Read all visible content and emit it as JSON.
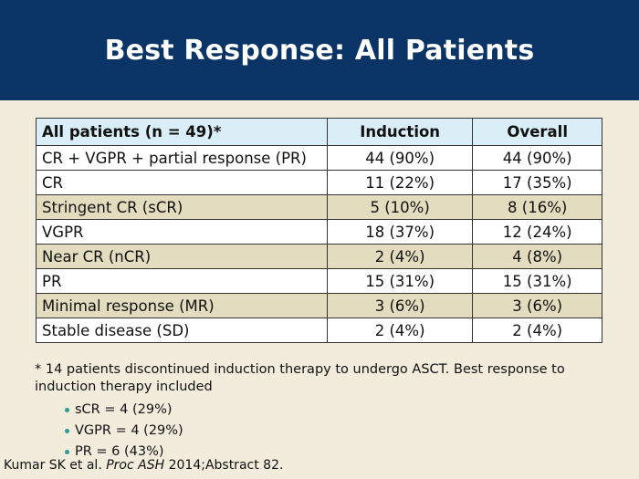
{
  "slide": {
    "title": "Best Response: All Patients"
  },
  "table": {
    "headers": [
      "All patients (n = 49)*",
      "Induction",
      "Overall"
    ],
    "rows": [
      {
        "label": "CR + VGPR + partial response (PR)",
        "induction": "44 (90%)",
        "overall": "44 (90%)"
      },
      {
        "label": "CR",
        "induction": "11 (22%)",
        "overall": "17 (35%)"
      },
      {
        "label": "Stringent CR (sCR)",
        "induction": "5 (10%)",
        "overall": "8 (16%)"
      },
      {
        "label": "VGPR",
        "induction": "18 (37%)",
        "overall": "12 (24%)"
      },
      {
        "label": "Near CR (nCR)",
        "induction": "2 (4%)",
        "overall": "4 (8%)"
      },
      {
        "label": "PR",
        "induction": "15 (31%)",
        "overall": "15 (31%)"
      },
      {
        "label": "Minimal response (MR)",
        "induction": "3 (6%)",
        "overall": "3 (6%)"
      },
      {
        "label": "Stable disease (SD)",
        "induction": "2 (4%)",
        "overall": "2 (4%)"
      }
    ]
  },
  "footnote": {
    "text": "* 14 patients discontinued induction therapy to undergo ASCT. Best response to induction therapy included",
    "bullets": [
      "sCR = 4 (29%)",
      "VGPR = 4 (29%)",
      "PR = 6 (43%)"
    ]
  },
  "citation": {
    "authors": "Kumar SK et al.",
    "journal": "Proc ASH",
    "rest": "2014;Abstract 82."
  },
  "colors": {
    "title_bar": "#0b3466",
    "background": "#f1ecdc",
    "header_row": "#daeef7",
    "shaded_row": "#e4dcbf",
    "bullet": "#2f9a8f"
  }
}
